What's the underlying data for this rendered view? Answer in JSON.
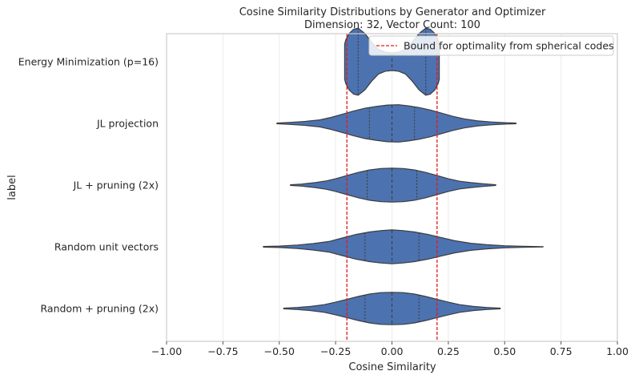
{
  "chart_data": {
    "type": "violin",
    "orientation": "horizontal",
    "title_line1": "Cosine Similarity Distributions by Generator and Optimizer",
    "title_line2": "Dimension: 32, Vector Count: 100",
    "xlabel": "Cosine Similarity",
    "ylabel": "label",
    "xlim": [
      -1.0,
      1.0
    ],
    "xticks": [
      -1.0,
      -0.75,
      -0.5,
      -0.25,
      0.0,
      0.25,
      0.5,
      0.75,
      1.0
    ],
    "xtick_labels": [
      "−1.00",
      "−0.75",
      "−0.50",
      "−0.25",
      "0.00",
      "0.25",
      "0.50",
      "0.75",
      "1.00"
    ],
    "grid": "vertical",
    "violin_color": "#4c72b0",
    "edge_color": "#3d3d3d",
    "reference_lines": {
      "label": "Bound for optimality from spherical codes",
      "values": [
        -0.2,
        0.2
      ],
      "color": "#e31a1c",
      "style": "dashed"
    },
    "legend_position": "top-right",
    "categories": [
      {
        "label": "Energy Minimization (p=16)",
        "min": -0.21,
        "max": 0.21,
        "q1": -0.15,
        "median": 0.0,
        "q3": 0.15,
        "width": [
          [
            -0.21,
            0.5
          ],
          [
            -0.205,
            0.62
          ],
          [
            -0.19,
            0.8
          ],
          [
            -0.17,
            0.92
          ],
          [
            -0.15,
            0.95
          ],
          [
            -0.12,
            0.8
          ],
          [
            -0.09,
            0.55
          ],
          [
            -0.06,
            0.35
          ],
          [
            -0.03,
            0.27
          ],
          [
            0.0,
            0.25
          ],
          [
            0.03,
            0.27
          ],
          [
            0.06,
            0.35
          ],
          [
            0.09,
            0.55
          ],
          [
            0.12,
            0.8
          ],
          [
            0.15,
            0.95
          ],
          [
            0.17,
            0.92
          ],
          [
            0.19,
            0.8
          ],
          [
            0.205,
            0.62
          ],
          [
            0.21,
            0.5
          ]
        ]
      },
      {
        "label": "JL projection",
        "min": -0.51,
        "max": 0.55,
        "q1": -0.1,
        "median": 0.0,
        "q3": 0.1,
        "width": [
          [
            -0.51,
            0.01
          ],
          [
            -0.45,
            0.03
          ],
          [
            -0.38,
            0.06
          ],
          [
            -0.32,
            0.1
          ],
          [
            -0.27,
            0.17
          ],
          [
            -0.22,
            0.26
          ],
          [
            -0.17,
            0.35
          ],
          [
            -0.12,
            0.43
          ],
          [
            -0.07,
            0.48
          ],
          [
            -0.02,
            0.52
          ],
          [
            0.03,
            0.53
          ],
          [
            0.07,
            0.5
          ],
          [
            0.12,
            0.45
          ],
          [
            0.17,
            0.38
          ],
          [
            0.22,
            0.29
          ],
          [
            0.27,
            0.2
          ],
          [
            0.32,
            0.13
          ],
          [
            0.38,
            0.07
          ],
          [
            0.44,
            0.04
          ],
          [
            0.5,
            0.02
          ],
          [
            0.55,
            0.01
          ]
        ]
      },
      {
        "label": "JL + pruning (2x)",
        "min": -0.45,
        "max": 0.46,
        "q1": -0.11,
        "median": 0.0,
        "q3": 0.11,
        "width": [
          [
            -0.45,
            0.01
          ],
          [
            -0.4,
            0.03
          ],
          [
            -0.34,
            0.07
          ],
          [
            -0.29,
            0.12
          ],
          [
            -0.25,
            0.18
          ],
          [
            -0.2,
            0.27
          ],
          [
            -0.15,
            0.36
          ],
          [
            -0.1,
            0.43
          ],
          [
            -0.05,
            0.47
          ],
          [
            0.0,
            0.48
          ],
          [
            0.05,
            0.47
          ],
          [
            0.1,
            0.43
          ],
          [
            0.15,
            0.36
          ],
          [
            0.2,
            0.27
          ],
          [
            0.25,
            0.18
          ],
          [
            0.3,
            0.11
          ],
          [
            0.35,
            0.07
          ],
          [
            0.4,
            0.04
          ],
          [
            0.46,
            0.01
          ]
        ]
      },
      {
        "label": "Random unit vectors",
        "min": -0.57,
        "max": 0.67,
        "q1": -0.12,
        "median": 0.0,
        "q3": 0.12,
        "width": [
          [
            -0.57,
            0.01
          ],
          [
            -0.5,
            0.02
          ],
          [
            -0.42,
            0.05
          ],
          [
            -0.35,
            0.09
          ],
          [
            -0.28,
            0.15
          ],
          [
            -0.22,
            0.25
          ],
          [
            -0.16,
            0.35
          ],
          [
            -0.1,
            0.42
          ],
          [
            -0.05,
            0.46
          ],
          [
            0.0,
            0.48
          ],
          [
            0.05,
            0.46
          ],
          [
            0.1,
            0.42
          ],
          [
            0.16,
            0.35
          ],
          [
            0.22,
            0.26
          ],
          [
            0.28,
            0.17
          ],
          [
            0.35,
            0.1
          ],
          [
            0.42,
            0.06
          ],
          [
            0.5,
            0.03
          ],
          [
            0.58,
            0.015
          ],
          [
            0.67,
            0.005
          ]
        ]
      },
      {
        "label": "Random + pruning (2x)",
        "min": -0.48,
        "max": 0.48,
        "q1": -0.12,
        "median": 0.0,
        "q3": 0.12,
        "width": [
          [
            -0.48,
            0.01
          ],
          [
            -0.42,
            0.03
          ],
          [
            -0.36,
            0.06
          ],
          [
            -0.3,
            0.11
          ],
          [
            -0.25,
            0.18
          ],
          [
            -0.2,
            0.26
          ],
          [
            -0.15,
            0.34
          ],
          [
            -0.1,
            0.41
          ],
          [
            -0.05,
            0.45
          ],
          [
            0.0,
            0.46
          ],
          [
            0.05,
            0.45
          ],
          [
            0.1,
            0.41
          ],
          [
            0.15,
            0.34
          ],
          [
            0.2,
            0.26
          ],
          [
            0.25,
            0.18
          ],
          [
            0.3,
            0.11
          ],
          [
            0.36,
            0.06
          ],
          [
            0.42,
            0.03
          ],
          [
            0.48,
            0.01
          ]
        ]
      }
    ]
  }
}
